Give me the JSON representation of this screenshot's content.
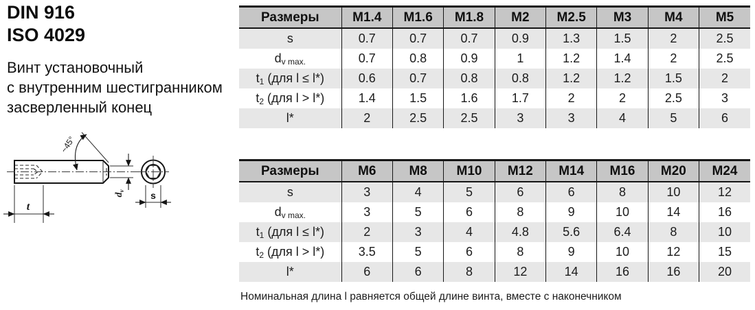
{
  "page": {
    "standards": [
      "DIN 916",
      "ISO 4029"
    ],
    "description": [
      "Винт установочный",
      "с внутренним шестигранником",
      "засверленный конец"
    ],
    "footnote": "Номинальная длина l равняется общей длине винта, вместе с наконечником"
  },
  "drawing": {
    "angle_label": "~45°",
    "t_label": "t",
    "dv_label_main": "d",
    "dv_label_sub": "v",
    "s_label": "s"
  },
  "tables": [
    {
      "corner_label": "Размеры",
      "columns": [
        "M1.4",
        "M1.6",
        "M1.8",
        "M2",
        "M2.5",
        "M3",
        "M4",
        "M5"
      ],
      "rows": [
        {
          "label": [
            {
              "t": "s"
            }
          ],
          "values": [
            "0.7",
            "0.7",
            "0.7",
            "0.9",
            "1.3",
            "1.5",
            "2",
            "2.5"
          ]
        },
        {
          "label": [
            {
              "t": "d"
            },
            {
              "t": "v max.",
              "sub": true
            }
          ],
          "values": [
            "0.7",
            "0.8",
            "0.9",
            "1",
            "1.2",
            "1.4",
            "2",
            "2.5"
          ]
        },
        {
          "label": [
            {
              "t": "t"
            },
            {
              "t": "1",
              "sub": true
            },
            {
              "t": " (для l ≤ l*)"
            }
          ],
          "values": [
            "0.6",
            "0.7",
            "0.8",
            "0.8",
            "1.2",
            "1.2",
            "1.5",
            "2"
          ]
        },
        {
          "label": [
            {
              "t": "t"
            },
            {
              "t": "2",
              "sub": true
            },
            {
              "t": " (для l > l*)"
            }
          ],
          "values": [
            "1.4",
            "1.5",
            "1.6",
            "1.7",
            "2",
            "2",
            "2.5",
            "3"
          ]
        },
        {
          "label": [
            {
              "t": "l*"
            }
          ],
          "values": [
            "2",
            "2.5",
            "2.5",
            "3",
            "3",
            "4",
            "5",
            "6"
          ]
        }
      ]
    },
    {
      "corner_label": "Размеры",
      "columns": [
        "M6",
        "M8",
        "M10",
        "M12",
        "M14",
        "M16",
        "M20",
        "M24"
      ],
      "rows": [
        {
          "label": [
            {
              "t": "s"
            }
          ],
          "values": [
            "3",
            "4",
            "5",
            "6",
            "6",
            "8",
            "10",
            "12"
          ]
        },
        {
          "label": [
            {
              "t": "d"
            },
            {
              "t": "v max.",
              "sub": true
            }
          ],
          "values": [
            "3",
            "5",
            "6",
            "8",
            "9",
            "10",
            "14",
            "16"
          ]
        },
        {
          "label": [
            {
              "t": "t"
            },
            {
              "t": "1",
              "sub": true
            },
            {
              "t": " (для l ≤ l*)"
            }
          ],
          "values": [
            "2",
            "3",
            "4",
            "4.8",
            "5.6",
            "6.4",
            "8",
            "10"
          ]
        },
        {
          "label": [
            {
              "t": "t"
            },
            {
              "t": "2",
              "sub": true
            },
            {
              "t": " (для l > l*)"
            }
          ],
          "values": [
            "3.5",
            "5",
            "6",
            "8",
            "9",
            "10",
            "12",
            "15"
          ]
        },
        {
          "label": [
            {
              "t": "l*"
            }
          ],
          "values": [
            "6",
            "6",
            "8",
            "12",
            "14",
            "16",
            "16",
            "20"
          ]
        }
      ]
    }
  ],
  "colors": {
    "header_bg": "#c6c6c6",
    "alt_row_bg": "#e7e7e7",
    "border": "#151515"
  }
}
